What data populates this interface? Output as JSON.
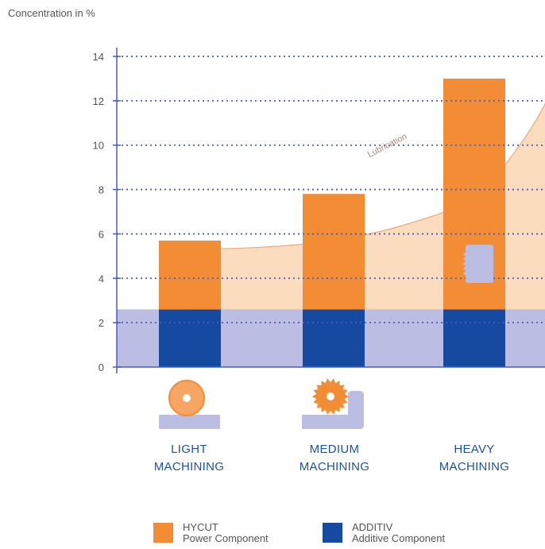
{
  "chart_data": {
    "type": "bar",
    "ylabel": "Concentration in %",
    "ylim": [
      0,
      14
    ],
    "yticks": [
      0,
      2,
      4,
      6,
      8,
      10,
      12,
      14
    ],
    "grid": true,
    "categories": [
      "LIGHT MACHINING",
      "MEDIUM MACHINING",
      "HEAVY MACHINING"
    ],
    "category_lines": [
      [
        "LIGHT",
        "MACHINING"
      ],
      [
        "MEDIUM",
        "MACHINING"
      ],
      [
        "HEAVY",
        "MACHINING"
      ]
    ],
    "series": [
      {
        "name": "ADDITIV",
        "values": [
          2.6,
          2.6,
          2.6
        ],
        "color": "#1649a0"
      },
      {
        "name": "HYCUT",
        "values": [
          3.1,
          5.2,
          10.4
        ],
        "color": "#f28c35"
      }
    ],
    "stacked_totals": [
      5.7,
      7.8,
      13.0
    ],
    "additive_band_level": 2.6,
    "lubrication_label": "Lubrication",
    "lubrication_curve": [
      [
        0,
        5.3
      ],
      [
        0.5,
        5.4
      ],
      [
        1,
        5.7
      ],
      [
        1.5,
        6.4
      ],
      [
        2,
        7.6
      ],
      [
        2.5,
        9.3
      ],
      [
        3,
        11.6
      ],
      [
        3.5,
        14.9
      ]
    ],
    "legend": [
      {
        "swatch_color": "#f28c35",
        "line1": "HYCUT",
        "line2": "Power Component"
      },
      {
        "swatch_color": "#1649a0",
        "line1": "ADDITIV",
        "line2": "Additive Component"
      }
    ],
    "colors": {
      "axis": "#4a5db8",
      "grid": "#4a5db8",
      "lubrication_fill": "#fbdcbf",
      "lubrication_line": "#f0a878",
      "additive_band": "#bcbde3",
      "tool_orange": "#f28c35",
      "tool_light_orange": "#f6a562",
      "workpiece": "#bcbde3"
    },
    "icons": [
      "grinding-wheel-icon",
      "saw-blade-icon",
      "heavy-insert-icon"
    ]
  }
}
